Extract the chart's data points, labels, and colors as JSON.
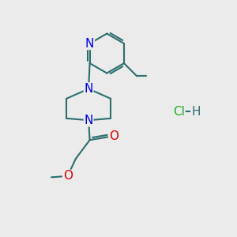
{
  "background_color": "#ebebeb",
  "bond_color": "#2d6e6e",
  "bond_width": 1.5,
  "atom_colors": {
    "N": "#0000ee",
    "O": "#dd0000",
    "C": "#2d6e6e",
    "Cl": "#22aa22",
    "H": "#2d6e6e"
  },
  "figsize": [
    3.0,
    3.0
  ],
  "dpi": 100
}
